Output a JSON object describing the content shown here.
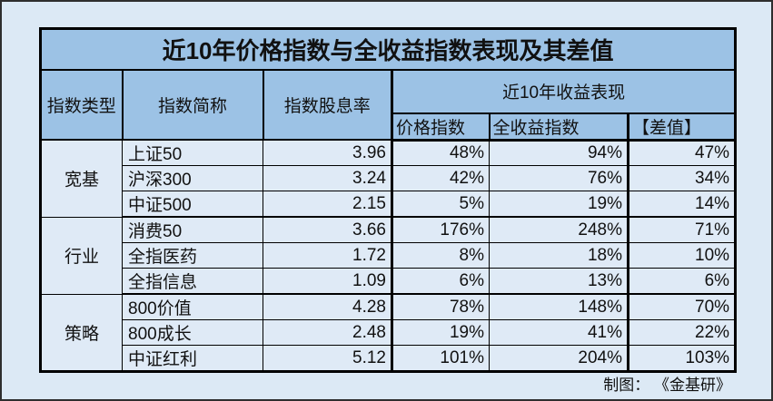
{
  "title": "近10年价格指数与全收益指数表现及其差值",
  "header": {
    "col_type": "指数类型",
    "col_name": "指数简称",
    "col_dividend": "指数股息率",
    "col_perf_group": "近10年收益表现",
    "col_price": "价格指数",
    "col_total": "全收益指数",
    "col_diff": "【差值】"
  },
  "groups": [
    {
      "label": "宽基"
    },
    {
      "label": "行业"
    },
    {
      "label": "策略"
    }
  ],
  "rows": [
    {
      "group": "宽基",
      "name": "上证50",
      "dividend": "3.96",
      "price": "48%",
      "total": "94%",
      "diff": "47%"
    },
    {
      "group": "宽基",
      "name": "沪深300",
      "dividend": "3.24",
      "price": "42%",
      "total": "76%",
      "diff": "34%"
    },
    {
      "group": "宽基",
      "name": "中证500",
      "dividend": "2.15",
      "price": "5%",
      "total": "19%",
      "diff": "14%"
    },
    {
      "group": "行业",
      "name": "消费50",
      "dividend": "3.66",
      "price": "176%",
      "total": "248%",
      "diff": "71%"
    },
    {
      "group": "行业",
      "name": "全指医药",
      "dividend": "1.72",
      "price": "8%",
      "total": "18%",
      "diff": "10%"
    },
    {
      "group": "行业",
      "name": "全指信息",
      "dividend": "1.09",
      "price": "6%",
      "total": "13%",
      "diff": "6%"
    },
    {
      "group": "策略",
      "name": "800价值",
      "dividend": "4.28",
      "price": "78%",
      "total": "148%",
      "diff": "70%"
    },
    {
      "group": "策略",
      "name": "800成长",
      "dividend": "2.48",
      "price": "19%",
      "total": "41%",
      "diff": "22%"
    },
    {
      "group": "策略",
      "name": "中证红利",
      "dividend": "5.12",
      "price": "101%",
      "total": "204%",
      "diff": "103%"
    }
  ],
  "footer": {
    "credit": "制图：  《金基研》"
  },
  "colors": {
    "header_bg": "#9CC2E5",
    "body_bg": "#DFEAF6",
    "page_bg": "#DCE9F5",
    "border": "#000000",
    "frame": "#2E2E2E",
    "text": "#111111"
  },
  "chart_data": {
    "type": "table",
    "title": "近10年价格指数与全收益指数表现及其差值",
    "columns": [
      "指数类型",
      "指数简称",
      "指数股息率",
      "价格指数",
      "全收益指数",
      "【差值】"
    ],
    "column_group": {
      "label": "近10年收益表现",
      "spans": [
        "价格指数",
        "全收益指数",
        "【差值】"
      ]
    },
    "rows": [
      [
        "宽基",
        "上证50",
        3.96,
        48,
        94,
        47
      ],
      [
        "宽基",
        "沪深300",
        3.24,
        42,
        76,
        34
      ],
      [
        "宽基",
        "中证500",
        2.15,
        5,
        19,
        14
      ],
      [
        "行业",
        "消费50",
        3.66,
        176,
        248,
        71
      ],
      [
        "行业",
        "全指医药",
        1.72,
        8,
        18,
        10
      ],
      [
        "行业",
        "全指信息",
        1.09,
        6,
        13,
        6
      ],
      [
        "策略",
        "800价值",
        4.28,
        78,
        148,
        70
      ],
      [
        "策略",
        "800成长",
        2.48,
        19,
        41,
        22
      ],
      [
        "策略",
        "中证红利",
        5.12,
        101,
        204,
        103
      ]
    ],
    "units": {
      "指数股息率": "",
      "价格指数": "%",
      "全收益指数": "%",
      "【差值】": "%"
    },
    "credit": "制图：  《金基研》"
  }
}
